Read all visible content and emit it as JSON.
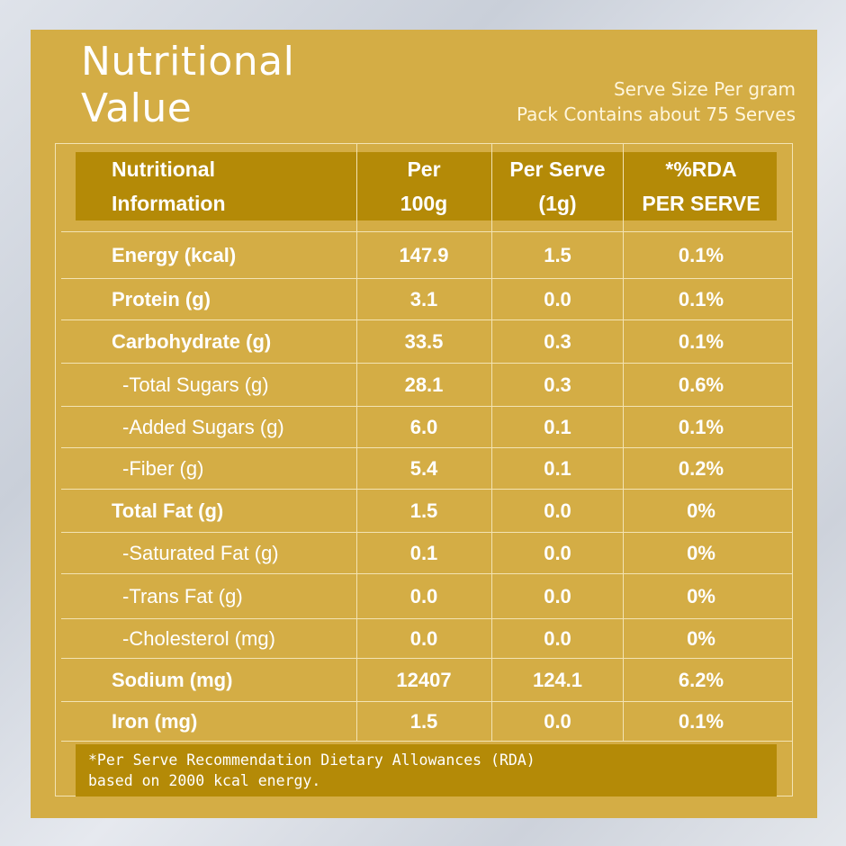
{
  "title": {
    "line1": "Nutritional",
    "line2": "Value"
  },
  "serve_info": {
    "size": "Serve Size Per gram",
    "contains": "Pack Contains about 75 Serves"
  },
  "table": {
    "headers": {
      "nutrient": [
        "Nutritional",
        "Information"
      ],
      "per100": [
        "Per",
        "100g"
      ],
      "perServe": [
        "Per Serve",
        "(1g)"
      ],
      "rda": [
        "*%RDA",
        "PER SERVE"
      ]
    },
    "rows": [
      {
        "name": "Energy (kcal)",
        "per100": "147.9",
        "perServe": "1.5",
        "rda": "0.1%",
        "sub": false
      },
      {
        "name": "Protein (g)",
        "per100": "3.1",
        "perServe": "0.0",
        "rda": "0.1%",
        "sub": false
      },
      {
        "name": "Carbohydrate (g)",
        "per100": "33.5",
        "perServe": "0.3",
        "rda": "0.1%",
        "sub": false
      },
      {
        "name": "-Total Sugars (g)",
        "per100": "28.1",
        "perServe": "0.3",
        "rda": "0.6%",
        "sub": true
      },
      {
        "name": "-Added Sugars (g)",
        "per100": "6.0",
        "perServe": "0.1",
        "rda": "0.1%",
        "sub": true
      },
      {
        "name": "-Fiber (g)",
        "per100": "5.4",
        "perServe": "0.1",
        "rda": "0.2%",
        "sub": true
      },
      {
        "name": "Total Fat (g)",
        "per100": "1.5",
        "perServe": "0.0",
        "rda": "0%",
        "sub": false
      },
      {
        "name": "-Saturated Fat (g)",
        "per100": "0.1",
        "perServe": "0.0",
        "rda": "0%",
        "sub": true
      },
      {
        "name": "-Trans Fat (g)",
        "per100": "0.0",
        "perServe": "0.0",
        "rda": "0%",
        "sub": true
      },
      {
        "name": "-Cholesterol (mg)",
        "per100": "0.0",
        "perServe": "0.0",
        "rda": "0%",
        "sub": true
      },
      {
        "name": "Sodium (mg)",
        "per100": "12407",
        "perServe": "124.1",
        "rda": "6.2%",
        "sub": false
      },
      {
        "name": "Iron (mg)",
        "per100": "1.5",
        "perServe": "0.0",
        "rda": "0.1%",
        "sub": false
      }
    ]
  },
  "footnote": {
    "line1": "*Per Serve Recommendation Dietary Allowances (RDA)",
    "line2": "based on 2000 kcal energy."
  },
  "colors": {
    "panel": "#d4ad45",
    "band": "#b48a07",
    "grid": "#f3e3b3",
    "text": "#ffffff"
  }
}
